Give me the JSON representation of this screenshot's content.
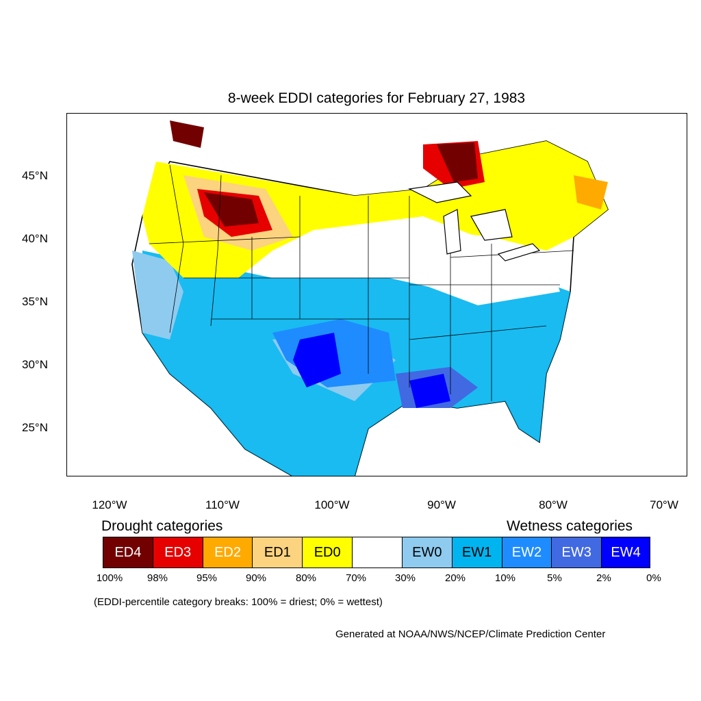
{
  "title": "8-week EDDI categories for February 27, 1983",
  "lat_labels": [
    "45°N",
    "40°N",
    "35°N",
    "30°N",
    "25°N"
  ],
  "lon_labels": [
    "120°W",
    "110°W",
    "100°W",
    "90°W",
    "80°W",
    "70°W"
  ],
  "drought_heading": "Drought categories",
  "wetness_heading": "Wetness categories",
  "legend": [
    {
      "label": "ED4",
      "color": "#730000",
      "text_color": "#ffffff"
    },
    {
      "label": "ED3",
      "color": "#e60000",
      "text_color": "#ffffff"
    },
    {
      "label": "ED2",
      "color": "#ffaa00",
      "text_color": "#ffffff"
    },
    {
      "label": "ED1",
      "color": "#fcd37f",
      "text_color": "#000000"
    },
    {
      "label": "ED0",
      "color": "#ffff00",
      "text_color": "#000000"
    },
    {
      "label": "",
      "color": "#ffffff",
      "text_color": "#000000"
    },
    {
      "label": "EW0",
      "color": "#8ecbef",
      "text_color": "#000000"
    },
    {
      "label": "EW1",
      "color": "#00b4f0",
      "text_color": "#000000"
    },
    {
      "label": "EW2",
      "color": "#1e8cff",
      "text_color": "#ffffff"
    },
    {
      "label": "EW3",
      "color": "#4169e1",
      "text_color": "#ffffff"
    },
    {
      "label": "EW4",
      "color": "#0000ff",
      "text_color": "#ffffff"
    }
  ],
  "percent_breaks": [
    "100%",
    "98%",
    "95%",
    "90%",
    "80%",
    "70%",
    "30%",
    "20%",
    "10%",
    "5%",
    "2%",
    "0%"
  ],
  "breaks_note": "(EDDI-percentile category breaks: 100% = driest; 0% = wettest)",
  "credit": "Generated at NOAA/NWS/NCEP/Climate Prediction Center"
}
